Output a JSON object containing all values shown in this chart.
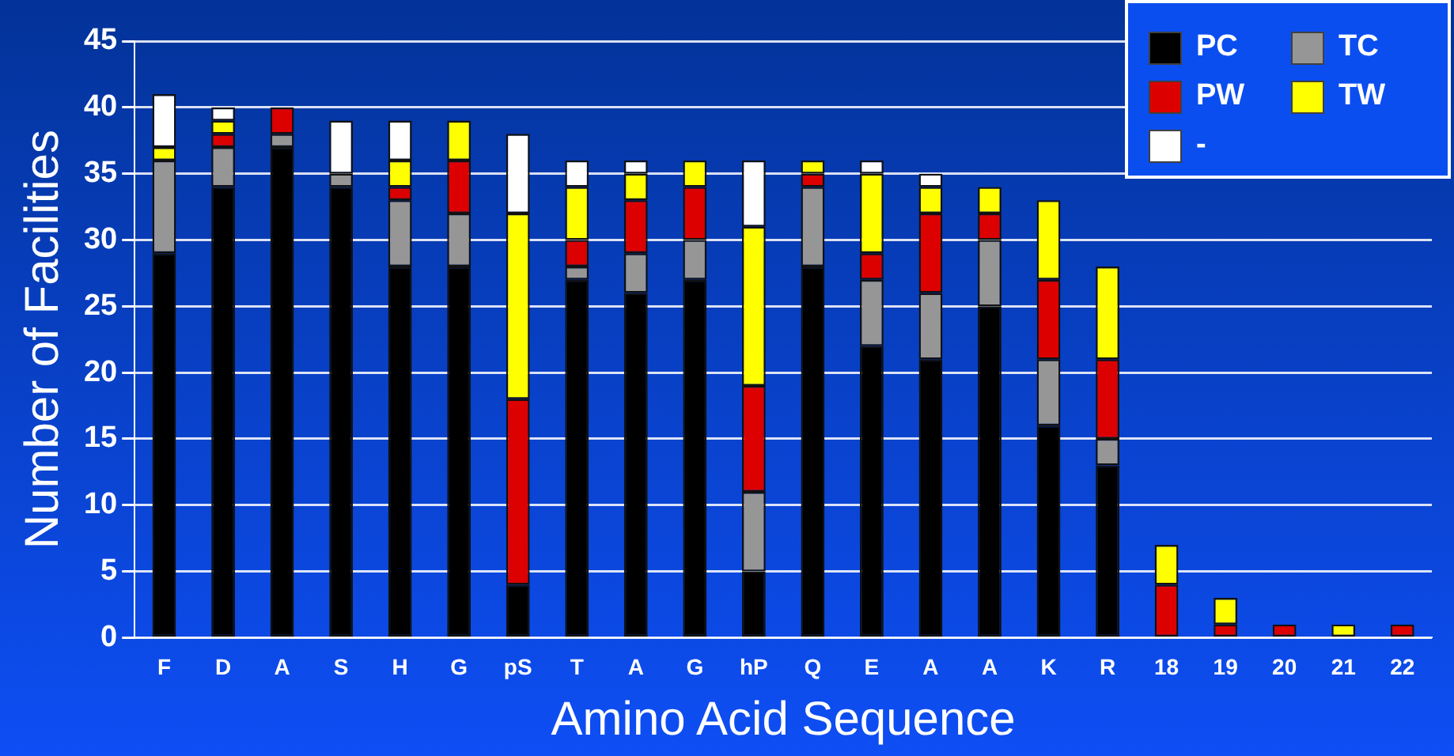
{
  "chart_data": {
    "type": "bar",
    "stacked": true,
    "xlabel": "Amino Acid Sequence",
    "ylabel": "Number of Facilities",
    "categories": [
      "F",
      "D",
      "A",
      "S",
      "H",
      "G",
      "pS",
      "T",
      "A",
      "G",
      "hP",
      "Q",
      "E",
      "A",
      "A",
      "K",
      "R",
      "18",
      "19",
      "20",
      "21",
      "22"
    ],
    "series": [
      {
        "name": "PC",
        "color": "#000000",
        "values": [
          29,
          34,
          37,
          34,
          28,
          28,
          4,
          27,
          26,
          27,
          5,
          28,
          22,
          21,
          25,
          16,
          13,
          0,
          0,
          0,
          0,
          0
        ]
      },
      {
        "name": "TC",
        "color": "#969696",
        "values": [
          7,
          3,
          1,
          1,
          5,
          4,
          0,
          1,
          3,
          3,
          6,
          6,
          5,
          5,
          5,
          5,
          2,
          0,
          0,
          0,
          0,
          0
        ]
      },
      {
        "name": "PW",
        "color": "#dd0000",
        "values": [
          0,
          1,
          2,
          0,
          1,
          4,
          14,
          2,
          4,
          4,
          8,
          1,
          2,
          6,
          2,
          6,
          6,
          4,
          1,
          1,
          0,
          1
        ]
      },
      {
        "name": "TW",
        "color": "#ffff00",
        "values": [
          1,
          1,
          0,
          0,
          2,
          3,
          14,
          4,
          2,
          2,
          12,
          1,
          6,
          2,
          2,
          6,
          7,
          3,
          2,
          0,
          1,
          0
        ]
      },
      {
        "name": "-",
        "color": "#ffffff",
        "values": [
          4,
          1,
          0,
          4,
          3,
          0,
          6,
          2,
          1,
          0,
          5,
          0,
          1,
          1,
          0,
          0,
          0,
          0,
          0,
          0,
          0,
          0
        ]
      }
    ],
    "ylim": [
      0,
      45
    ],
    "yticks": [
      0,
      5,
      10,
      15,
      20,
      25,
      30,
      35,
      40,
      45
    ],
    "grid": "y",
    "legend": "top right"
  }
}
